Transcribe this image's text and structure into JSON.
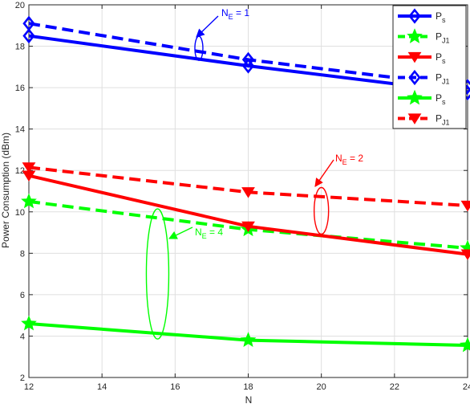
{
  "chart_data": {
    "type": "line",
    "xlabel": "N",
    "ylabel": "Power Consumption (dBm)",
    "xlim": [
      12,
      24
    ],
    "ylim": [
      2,
      20
    ],
    "xticks": [
      12,
      14,
      16,
      18,
      20,
      22,
      24
    ],
    "yticks": [
      2,
      4,
      6,
      8,
      10,
      12,
      14,
      16,
      18,
      20
    ],
    "grid": true,
    "legend_position": "top-right",
    "x": [
      12,
      18,
      24
    ],
    "series": [
      {
        "legend_main": "P",
        "legend_sub": "s",
        "color": "#0000ff",
        "dash": "solid",
        "marker": "diamond",
        "values": [
          18.5,
          17.05,
          15.75
        ]
      },
      {
        "legend_main": "P",
        "legend_sub": "J1",
        "color": "#00ff00",
        "dash": "dashed",
        "marker": "star",
        "values": [
          10.5,
          9.15,
          8.25
        ]
      },
      {
        "legend_main": "P",
        "legend_sub": "s",
        "color": "#ff0000",
        "dash": "solid",
        "marker": "triangle-down",
        "values": [
          11.75,
          9.3,
          7.95
        ]
      },
      {
        "legend_main": "P",
        "legend_sub": "J1",
        "color": "#0000ff",
        "dash": "dashed",
        "marker": "diamond",
        "values": [
          19.1,
          17.35,
          16.05
        ]
      },
      {
        "legend_main": "P",
        "legend_sub": "s",
        "color": "#00ff00",
        "dash": "solid",
        "marker": "star",
        "values": [
          4.6,
          3.8,
          3.55
        ]
      },
      {
        "legend_main": "P",
        "legend_sub": "J1",
        "color": "#ff0000",
        "dash": "dashed",
        "marker": "triangle-down",
        "values": [
          12.15,
          10.95,
          10.3
        ]
      }
    ],
    "annotations": [
      {
        "main": "N",
        "sub": "E",
        "rest": " = 1",
        "color": "#0000ff"
      },
      {
        "main": "N",
        "sub": "E",
        "rest": " = 2",
        "color": "#ff0000"
      },
      {
        "main": "N",
        "sub": "E",
        "rest": " = 4",
        "color": "#00ff00"
      }
    ]
  }
}
